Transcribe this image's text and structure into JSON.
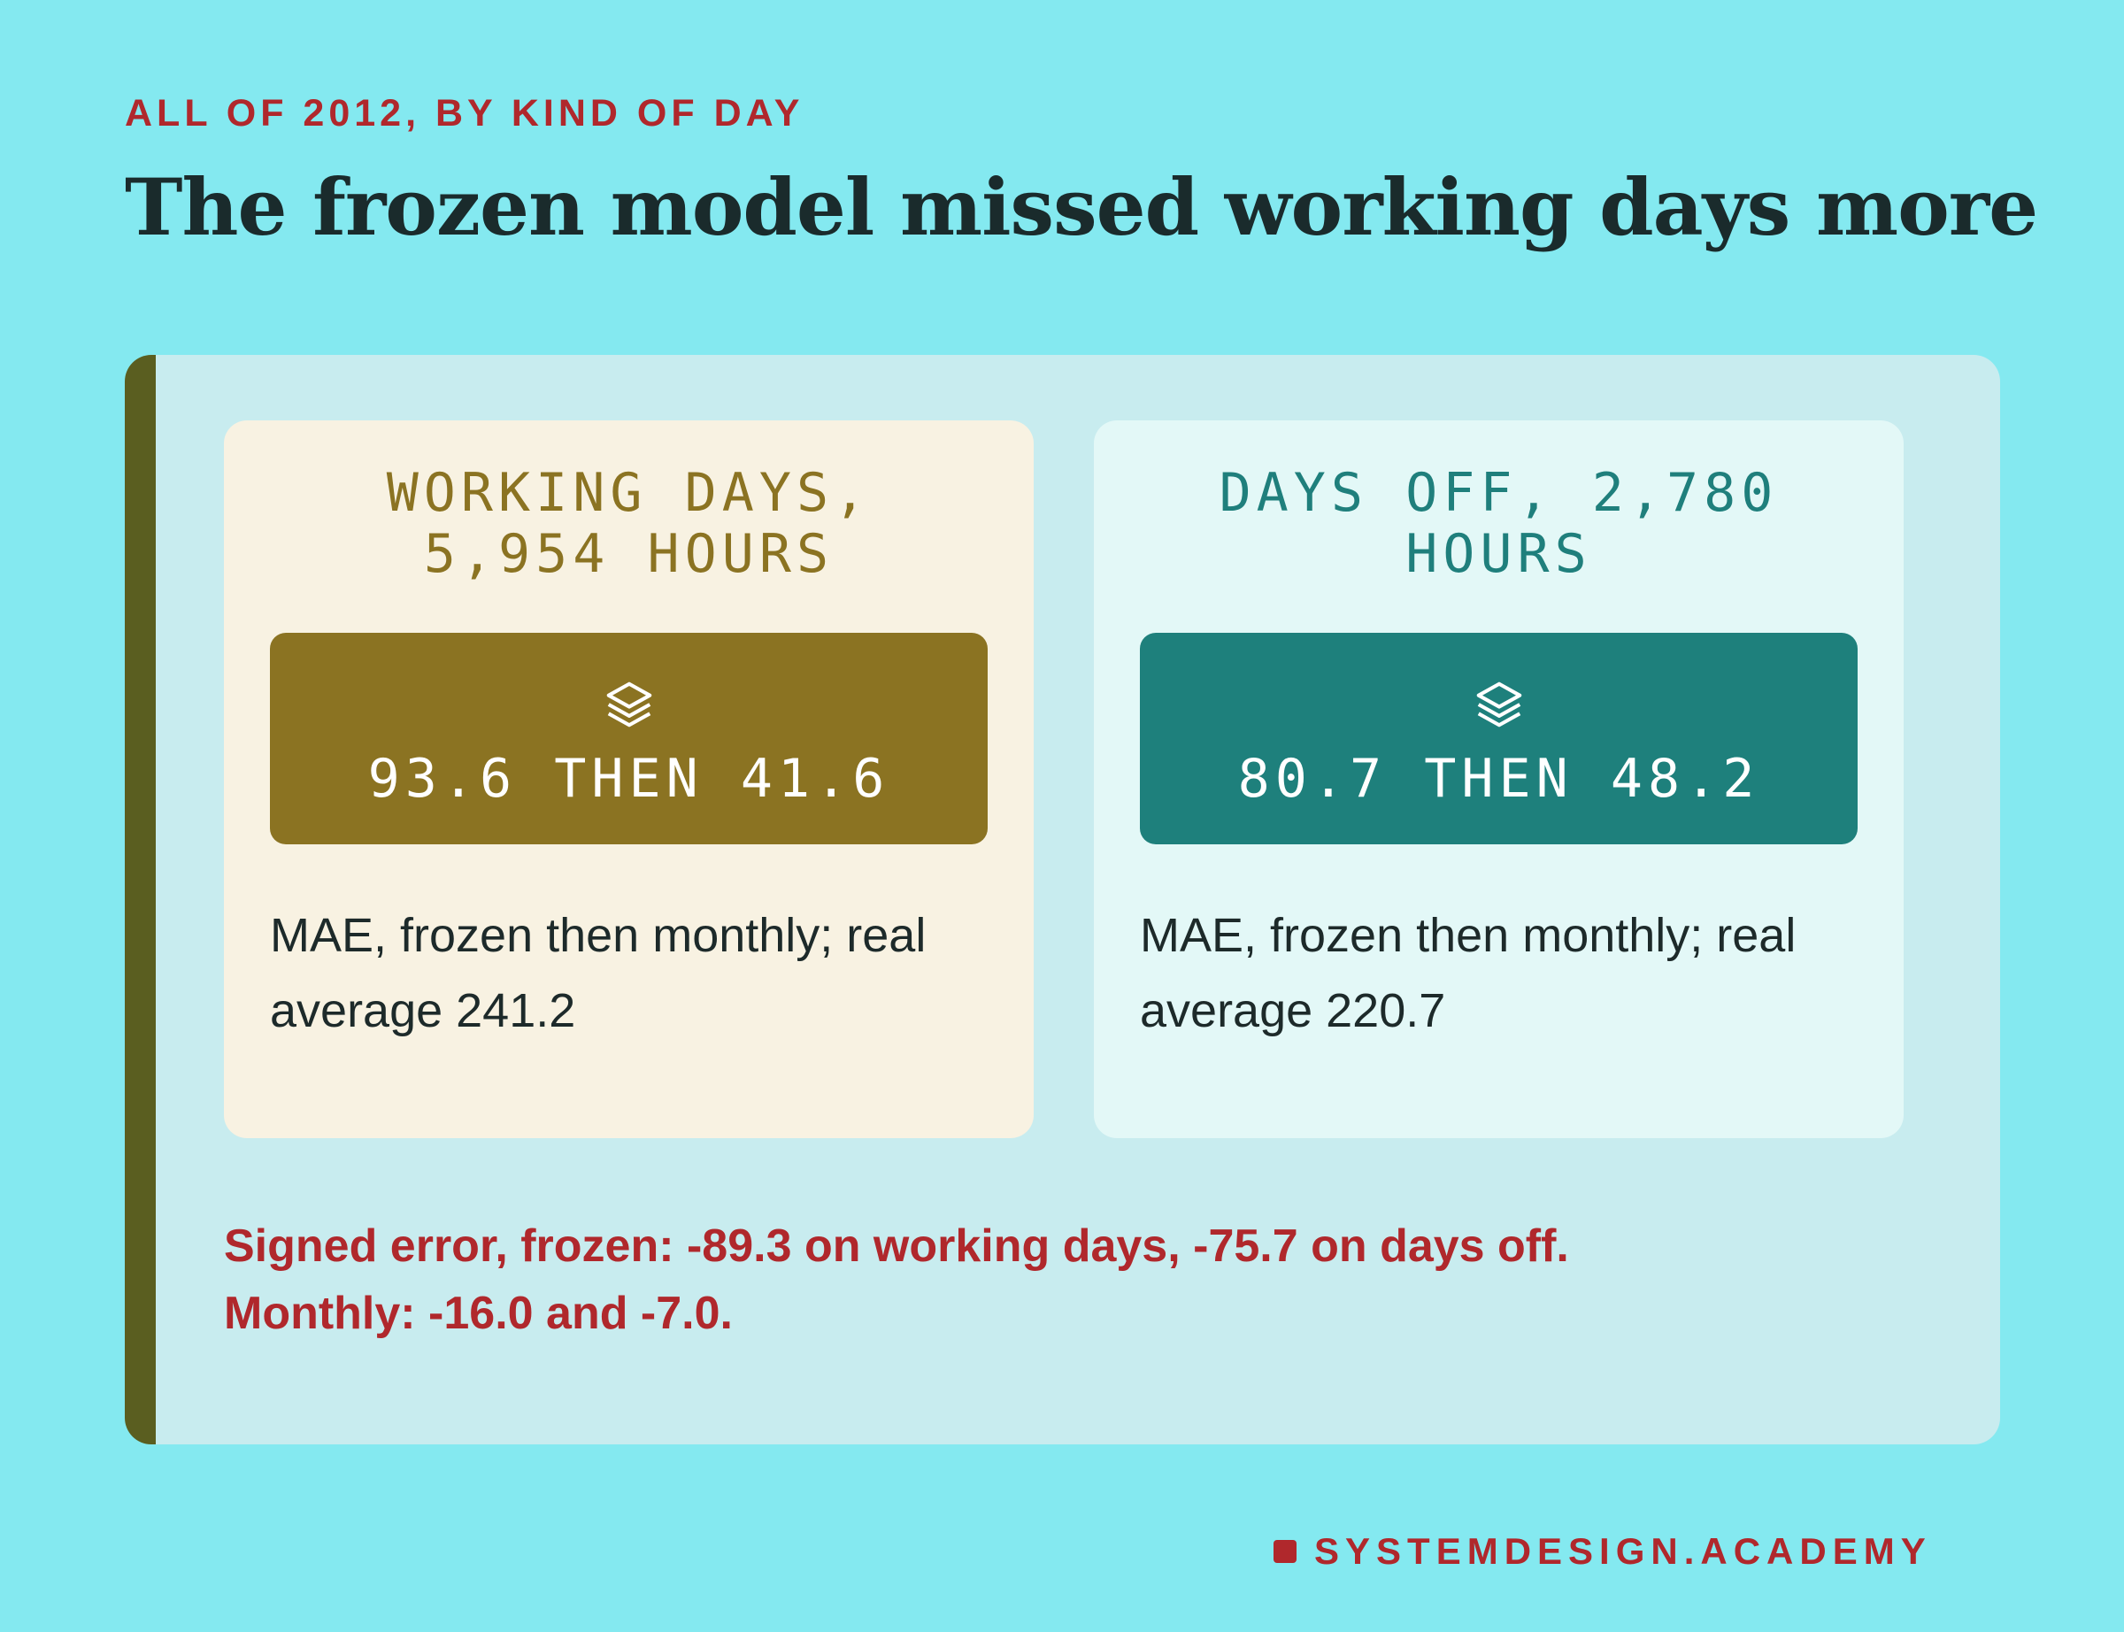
{
  "header": {
    "kicker": "ALL OF 2012, BY KIND OF DAY",
    "title": "The frozen model missed working days more"
  },
  "cards": [
    {
      "heading": "WORKING DAYS, 5,954 HOURS",
      "stat": "93.6 THEN 41.6",
      "caption": "MAE, frozen then monthly; real average 241.2"
    },
    {
      "heading": "DAYS OFF, 2,780 HOURS",
      "stat": "80.7 THEN 48.2",
      "caption": "MAE, frozen then monthly; real average 220.7"
    }
  ],
  "note": [
    "Signed error, frozen: -89.3 on working days, -75.7 on days off.",
    "Monthly: -16.0 and -7.0."
  ],
  "footer": {
    "brand": "SYSTEMDESIGN.ACADEMY"
  }
}
